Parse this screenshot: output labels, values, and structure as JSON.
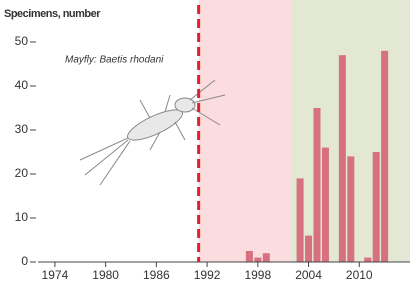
{
  "chart_data": {
    "type": "bar",
    "y_axis_label": "Specimens, number",
    "annotation": "Mayfly: Baetis rhodani",
    "x": [
      1997,
      1998,
      1999,
      2003,
      2004,
      2005,
      2006,
      2008,
      2009,
      2011,
      2012,
      2013
    ],
    "values": [
      2.5,
      1,
      2,
      19,
      6,
      35,
      26,
      47,
      24,
      1,
      25,
      48
    ],
    "color": "#d7707f",
    "xlim": [
      1972,
      2016
    ],
    "xticks": [
      1974,
      1980,
      1986,
      1992,
      1998,
      2004,
      2010
    ],
    "ylim": [
      0,
      50
    ],
    "yticks": [
      0,
      10,
      20,
      30,
      40,
      50
    ],
    "shaded_regions": [
      {
        "start": 1991,
        "end": 2002,
        "color": "#fbdcdf"
      },
      {
        "start": 2002,
        "end": 2016,
        "color": "#e2e8d3"
      }
    ],
    "vline": {
      "x": 1991,
      "color": "#e0202a"
    }
  }
}
